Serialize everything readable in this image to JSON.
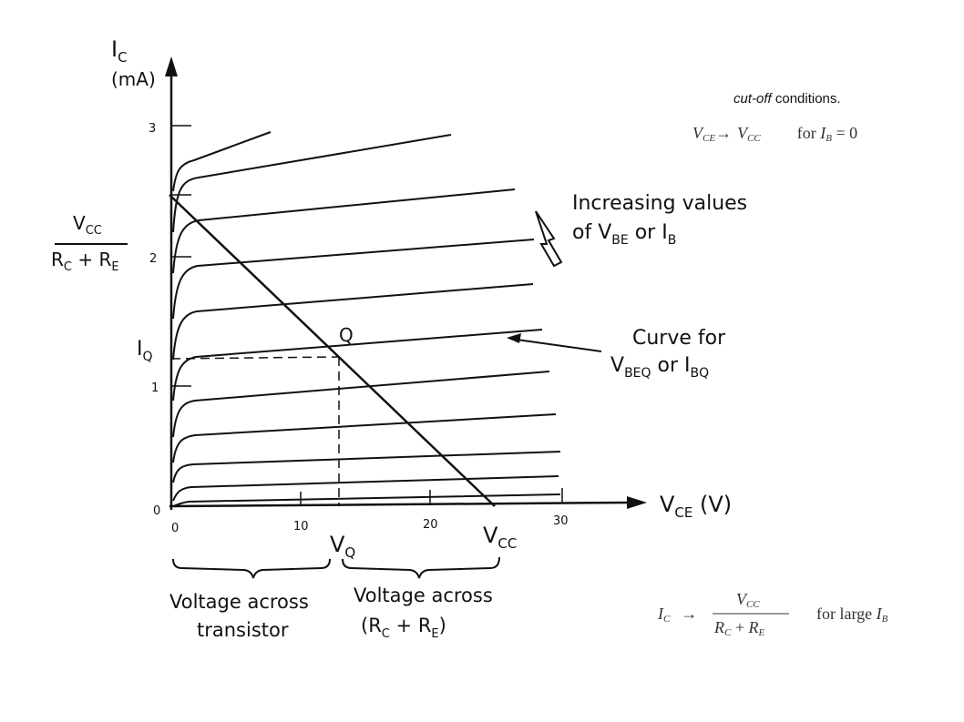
{
  "axes": {
    "y_symbol": "I",
    "y_subscript": "C",
    "y_unit": "(mA)",
    "x_symbol": "V",
    "x_subscript": "CE",
    "x_unit": " (V)",
    "y_ticks": [
      "0",
      "1",
      "2",
      "3"
    ],
    "x_ticks": [
      "0",
      "10",
      "20",
      "30"
    ]
  },
  "load_line": {
    "intercept_numerator": "V",
    "intercept_numerator_sub": "CC",
    "intercept_denominator_R1": "R",
    "intercept_denominator_R1_sub": "C",
    "intercept_denominator_plus": " + ",
    "intercept_denominator_R2": "R",
    "intercept_denominator_R2_sub": "E",
    "iq_label": "I",
    "iq_sub": "Q",
    "q_label": "Q",
    "vq_label": "V",
    "vq_sub": "Q",
    "vcc_label": "V",
    "vcc_sub": "CC"
  },
  "annotations": {
    "increasing_line1": "Increasing values",
    "increasing_line2_of": "of V",
    "increasing_line2_be_sub": "BE",
    "increasing_line2_or": " or I",
    "increasing_line2_b_sub": "B",
    "curve_line1": "Curve for",
    "curve_line2_v": "V",
    "curve_line2_beq_sub": "BEQ",
    "curve_line2_or": " or I",
    "curve_line2_bq_sub": "BQ"
  },
  "brackets": {
    "transistor_line1": "Voltage across",
    "transistor_line2": "transistor",
    "resistors_line1": "Voltage across",
    "resistors_line2_open": "(R",
    "resistors_line2_c_sub": "C",
    "resistors_line2_plus": " + R",
    "resistors_line2_e_sub": "E",
    "resistors_line2_close": ")"
  },
  "cutoff": {
    "title_italic": "cut-off",
    "title_rest": " conditions.",
    "formula_lhs": "V",
    "formula_lhs_sub": "CE",
    "formula_arrow": "→",
    "formula_rhs": "V",
    "formula_rhs_sub": "CC",
    "formula_for": "for ",
    "formula_ib": "I",
    "formula_ib_sub": "B",
    "formula_eq": " = 0"
  },
  "saturation": {
    "lhs": "I",
    "lhs_sub": "C",
    "arrow": "→",
    "numerator": "V",
    "numerator_sub": "CC",
    "denominator_r1": "R",
    "denominator_r1_sub": "C",
    "denominator_plus": " + ",
    "denominator_r2": "R",
    "denominator_r2_sub": "E",
    "for_text": "for large ",
    "ib": "I",
    "ib_sub": "B"
  }
}
